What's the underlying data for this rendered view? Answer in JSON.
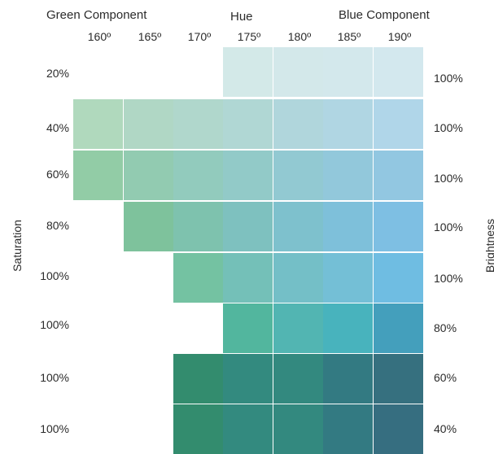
{
  "headers": {
    "green_component": "Green Component",
    "hue": "Hue",
    "blue_component": "Blue Component",
    "saturation": "Saturation",
    "brightness": "Brightness"
  },
  "hue_columns": [
    "160º",
    "165º",
    "170º",
    "175º",
    "180º",
    "185º",
    "190º"
  ],
  "saturation_rows": [
    "20%",
    "40%",
    "60%",
    "80%",
    "100%",
    "100%",
    "100%",
    "100%"
  ],
  "brightness_rows": [
    "100%",
    "100%",
    "100%",
    "100%",
    "100%",
    "80%",
    "60%",
    "40%"
  ],
  "swatches": [
    [
      null,
      null,
      null,
      "#d3e9e8",
      "#d3e8ea",
      "#d3e8ec",
      "#d3e8ee"
    ],
    [
      "#b0d9bd",
      "#b0d7c5",
      "#b0d7cc",
      "#b0d7d4",
      "#b0d6dc",
      "#b0d6e3",
      "#b0d6e9"
    ],
    [
      "#92cca6",
      "#92cbb1",
      "#92cbbd",
      "#92cac8",
      "#92c9d2",
      "#92c8db",
      "#92c7e1"
    ],
    [
      null,
      "#7ec29c",
      "#7ec2ae",
      "#7ec1bf",
      "#7ec1cd",
      "#7ec0da",
      "#7ebfe3"
    ],
    [
      null,
      null,
      "#74c2a2",
      "#74c0b8",
      "#74bfc7",
      "#74bfd6",
      "#6fbde2"
    ],
    [
      null,
      null,
      null,
      "#52b69e",
      "#52b5b2",
      "#48b3bd",
      "#449fbc"
    ],
    [
      null,
      null,
      "#338c6e",
      "#338a7f",
      "#33897f",
      "#337a82",
      "#36707f"
    ],
    [
      null,
      null,
      "#338c6e",
      "#338a7f",
      "#33897f",
      "#337a82",
      "#366e80"
    ]
  ]
}
